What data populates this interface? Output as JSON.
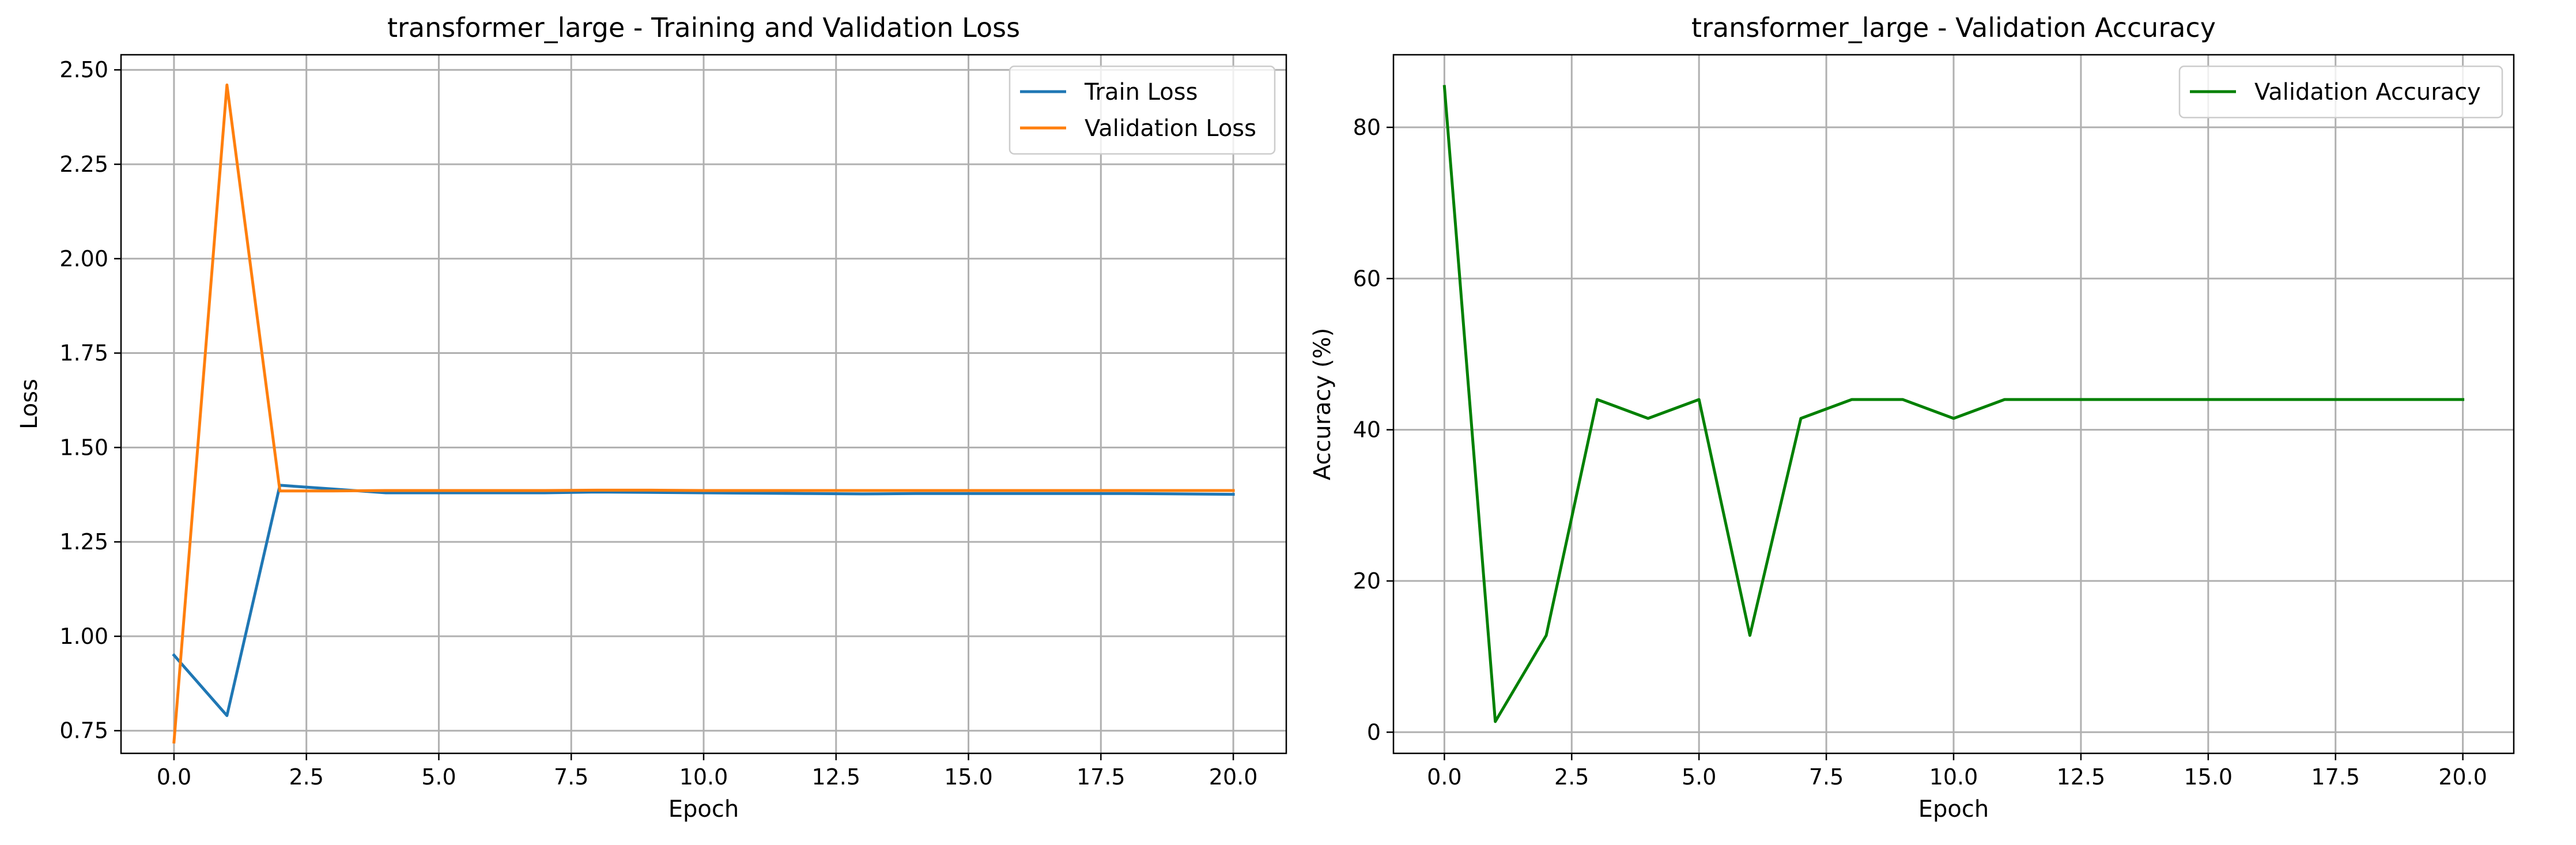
{
  "figure": {
    "background": "#ffffff"
  },
  "chart_data": [
    {
      "type": "line",
      "title": "transformer_large - Training and Validation Loss",
      "xlabel": "Epoch",
      "ylabel": "Loss",
      "xlim": [
        -1.0,
        21.0
      ],
      "ylim": [
        0.69,
        2.54
      ],
      "xticks": [
        0.0,
        2.5,
        5.0,
        7.5,
        10.0,
        12.5,
        15.0,
        17.5,
        20.0
      ],
      "xtick_labels": [
        "0.0",
        "2.5",
        "5.0",
        "7.5",
        "10.0",
        "12.5",
        "15.0",
        "17.5",
        "20.0"
      ],
      "yticks": [
        0.75,
        1.0,
        1.25,
        1.5,
        1.75,
        2.0,
        2.25,
        2.5
      ],
      "ytick_labels": [
        "0.75",
        "1.00",
        "1.25",
        "1.50",
        "1.75",
        "2.00",
        "2.25",
        "2.50"
      ],
      "grid": true,
      "legend_position": "top-right",
      "x": [
        0,
        1,
        2,
        3,
        4,
        5,
        6,
        7,
        8,
        9,
        10,
        11,
        12,
        13,
        14,
        15,
        16,
        17,
        18,
        19,
        20
      ],
      "series": [
        {
          "name": "Train Loss",
          "color": "#1f77b4",
          "values": [
            0.95,
            0.79,
            1.4,
            1.39,
            1.38,
            1.38,
            1.38,
            1.38,
            1.382,
            1.381,
            1.38,
            1.379,
            1.378,
            1.377,
            1.378,
            1.378,
            1.378,
            1.378,
            1.378,
            1.377,
            1.376
          ]
        },
        {
          "name": "Validation Loss",
          "color": "#ff7f0e",
          "values": [
            0.72,
            2.46,
            1.385,
            1.385,
            1.386,
            1.386,
            1.386,
            1.386,
            1.387,
            1.387,
            1.386,
            1.386,
            1.386,
            1.386,
            1.386,
            1.386,
            1.386,
            1.386,
            1.386,
            1.386,
            1.386
          ]
        }
      ]
    },
    {
      "type": "line",
      "title": "transformer_large - Validation Accuracy",
      "xlabel": "Epoch",
      "ylabel": "Accuracy (%)",
      "xlim": [
        -1.0,
        21.0
      ],
      "ylim": [
        -2.8,
        89.6
      ],
      "xticks": [
        0.0,
        2.5,
        5.0,
        7.5,
        10.0,
        12.5,
        15.0,
        17.5,
        20.0
      ],
      "xtick_labels": [
        "0.0",
        "2.5",
        "5.0",
        "7.5",
        "10.0",
        "12.5",
        "15.0",
        "17.5",
        "20.0"
      ],
      "yticks": [
        0,
        20,
        40,
        60,
        80
      ],
      "ytick_labels": [
        "0",
        "20",
        "40",
        "60",
        "80"
      ],
      "grid": true,
      "legend_position": "top-right",
      "x": [
        0,
        1,
        2,
        3,
        4,
        5,
        6,
        7,
        8,
        9,
        10,
        11,
        12,
        13,
        14,
        15,
        16,
        17,
        18,
        19,
        20
      ],
      "series": [
        {
          "name": "Validation Accuracy",
          "color": "#008000",
          "values": [
            85.4,
            1.4,
            12.8,
            44.0,
            41.5,
            44.0,
            12.8,
            41.5,
            44.0,
            44.0,
            41.5,
            44.0,
            44.0,
            44.0,
            44.0,
            44.0,
            44.0,
            44.0,
            44.0,
            44.0,
            44.0
          ]
        }
      ]
    }
  ]
}
